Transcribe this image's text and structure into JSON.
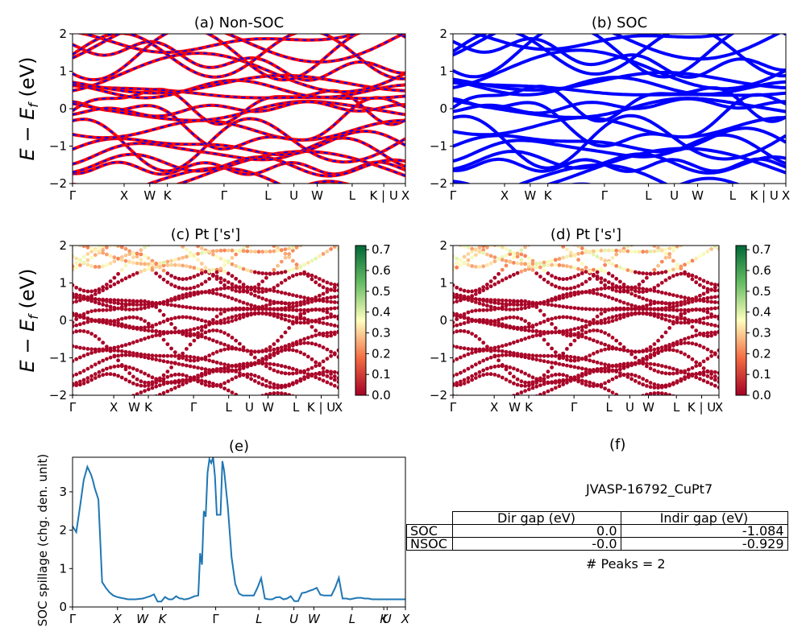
{
  "chart_data": [
    {
      "id": "a",
      "type": "line",
      "title": "(a) Non-SOC",
      "ylabel": "$E - E_f$ (eV)",
      "ylim": [
        -2,
        2
      ],
      "yticks": [
        "2",
        "1",
        "0",
        "−1",
        "−2"
      ],
      "xticks": [
        "Γ",
        "X",
        "W",
        "K",
        "Γ",
        "L",
        "U",
        "W",
        "L",
        "K | U",
        "X"
      ],
      "series": [
        {
          "color": "#ff0000",
          "style": "solid"
        },
        {
          "color": "#0000ff",
          "style": "dashed"
        }
      ]
    },
    {
      "id": "b",
      "type": "line",
      "title": "(b) SOC",
      "ylim": [
        -2,
        2
      ],
      "yticks": [
        "2",
        "1",
        "0",
        "−1",
        "−2"
      ],
      "xticks": [
        "Γ",
        "X",
        "W",
        "K",
        "Γ",
        "L",
        "U",
        "W",
        "L",
        "K | U",
        "X"
      ],
      "series": [
        {
          "color": "#0000ff",
          "style": "solid"
        }
      ]
    },
    {
      "id": "c",
      "type": "scatter",
      "title": "(c)  Pt ['s']",
      "ylabel": "$E - E_f$ (eV)",
      "ylim": [
        -2,
        2
      ],
      "yticks": [
        "2",
        "1",
        "0",
        "−1",
        "−2"
      ],
      "xticks": [
        "Γ",
        "X",
        "W",
        "K",
        "Γ",
        "L",
        "U",
        "W",
        "L",
        "K | U",
        "X"
      ],
      "colorbar": {
        "min": 0.0,
        "max": 0.72,
        "ticks": [
          "0.7",
          "0.6",
          "0.5",
          "0.4",
          "0.3",
          "0.2",
          "0.1",
          "0.0"
        ],
        "colormap": "RdYlGn"
      }
    },
    {
      "id": "d",
      "type": "scatter",
      "title": "(d) Pt ['s']",
      "ylim": [
        -2,
        2
      ],
      "yticks": [
        "2",
        "1",
        "0",
        "−1",
        "−2"
      ],
      "xticks": [
        "Γ",
        "X",
        "W",
        "K",
        "Γ",
        "L",
        "U",
        "W",
        "L",
        "K | U",
        "X"
      ],
      "colorbar": {
        "min": 0.0,
        "max": 0.72,
        "ticks": [
          "0.7",
          "0.6",
          "0.5",
          "0.4",
          "0.3",
          "0.2",
          "0.1",
          "0.0"
        ],
        "colormap": "RdYlGn"
      }
    },
    {
      "id": "e",
      "type": "line",
      "title": "(e)",
      "ylabel": "SOC spillage (chg. den. unit)",
      "ylim": [
        0,
        3.9
      ],
      "yticks": [
        "3",
        "2",
        "1",
        "0"
      ],
      "xticks": [
        "Γ",
        "X",
        "W",
        "K",
        "Γ",
        "L",
        "U",
        "W",
        "L",
        "K",
        "U",
        "X"
      ],
      "x": [
        0,
        2,
        4,
        6,
        8,
        10,
        11,
        12,
        14,
        16,
        18,
        20,
        22,
        24,
        26,
        28,
        29,
        30,
        32,
        34,
        36,
        38,
        40,
        42,
        44,
        46,
        48,
        50,
        52,
        54,
        56,
        57,
        58,
        59,
        60,
        61,
        62,
        63,
        64,
        65,
        66,
        67,
        68,
        69,
        70,
        71,
        72,
        73,
        74,
        75,
        76,
        77,
        78,
        79,
        80,
        81,
        82,
        84,
        86,
        88,
        90,
        92,
        94,
        95,
        96,
        98,
        100,
        102,
        104,
        106,
        108,
        110,
        112,
        114,
        116,
        118,
        120,
        122,
        124,
        126,
        128,
        130,
        132,
        134,
        136,
        138,
        140,
        142,
        144,
        146,
        148,
        150,
        152,
        154,
        156,
        158,
        160,
        162,
        164,
        166,
        168,
        170,
        172,
        174,
        176,
        178,
        180
      ],
      "y": [
        2.1,
        1.95,
        2.6,
        3.3,
        3.65,
        3.45,
        3.3,
        3.1,
        2.8,
        0.65,
        0.5,
        0.38,
        0.3,
        0.26,
        0.24,
        0.22,
        0.21,
        0.2,
        0.2,
        0.2,
        0.21,
        0.22,
        0.25,
        0.28,
        0.33,
        0.14,
        0.14,
        0.26,
        0.2,
        0.2,
        0.28,
        0.25,
        0.22,
        0.22,
        0.2,
        0.2,
        0.21,
        0.22,
        0.24,
        0.26,
        0.28,
        0.29,
        0.3,
        1.4,
        1.1,
        2.5,
        2.35,
        3.5,
        3.85,
        3.75,
        3.9,
        3.4,
        2.4,
        2.4,
        2.4,
        3.8,
        3.55,
        2.6,
        1.3,
        0.6,
        0.35,
        0.3,
        0.3,
        0.3,
        0.3,
        0.3,
        0.5,
        0.75,
        0.22,
        0.2,
        0.2,
        0.25,
        0.26,
        0.2,
        0.22,
        0.28,
        0.15,
        0.15,
        0.36,
        0.38,
        0.42,
        0.45,
        0.5,
        0.32,
        0.3,
        0.3,
        0.3,
        0.5,
        0.76,
        0.22,
        0.22,
        0.2,
        0.22,
        0.24,
        0.24,
        0.22,
        0.22,
        0.2,
        0.2,
        0.2,
        0.2,
        0.2,
        0.2,
        0.2,
        0.2,
        0.2,
        0.2
      ],
      "color": "#1f77b4"
    }
  ],
  "panel_f": {
    "title": "(f)",
    "material": "JVASP-16792_CuPt7",
    "table": {
      "columns": [
        "",
        "Dir gap (eV)",
        "Indir gap (eV)"
      ],
      "rows": [
        [
          "SOC",
          "0.0",
          "-1.084"
        ],
        [
          "NSOC",
          "-0.0",
          "-0.929"
        ]
      ]
    },
    "peaks": "# Peaks = 2"
  }
}
